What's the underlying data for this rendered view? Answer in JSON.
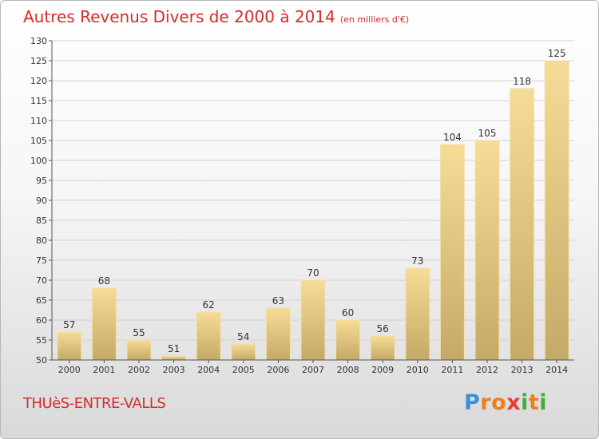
{
  "header": {
    "title": "Autres Revenus Divers de 2000 à 2014",
    "unit": "(en milliers d'€)"
  },
  "footer": {
    "commune": "THUèS-ENTRE-VALLS",
    "logo_letters": [
      "P",
      "r",
      "o",
      "x",
      "i",
      "t",
      "i"
    ],
    "logo_colors": [
      "#3d8fd6",
      "#f07d1a",
      "#f07d1a",
      "#e63d2e",
      "#3fae3a",
      "#f07d1a",
      "#3fae3a"
    ]
  },
  "colors": {
    "bar_light": "#f6dc96",
    "bar_dark": "#c4aa66",
    "axis": "#555555",
    "grid": "#d2d2d2",
    "title": "#d62b2b"
  },
  "chart_data": {
    "type": "bar",
    "title": "Autres Revenus Divers de 2000 à 2014",
    "categories": [
      "2000",
      "2001",
      "2002",
      "2003",
      "2004",
      "2005",
      "2006",
      "2007",
      "2008",
      "2009",
      "2010",
      "2011",
      "2012",
      "2013",
      "2014"
    ],
    "values": [
      57,
      68,
      55,
      51,
      62,
      54,
      63,
      70,
      60,
      56,
      73,
      104,
      105,
      118,
      125
    ],
    "data_labels": [
      "57",
      "68",
      "55",
      "51",
      "62",
      "54",
      "63",
      "70",
      "60",
      "56",
      "73",
      "104",
      "105",
      "118",
      "125"
    ],
    "yticks": [
      "50",
      "55",
      "60",
      "65",
      "70",
      "75",
      "80",
      "85",
      "90",
      "95",
      "100",
      "105",
      "110",
      "115",
      "120",
      "125",
      "130"
    ],
    "ylim": [
      50,
      130
    ],
    "grid": true,
    "legend": "none"
  }
}
